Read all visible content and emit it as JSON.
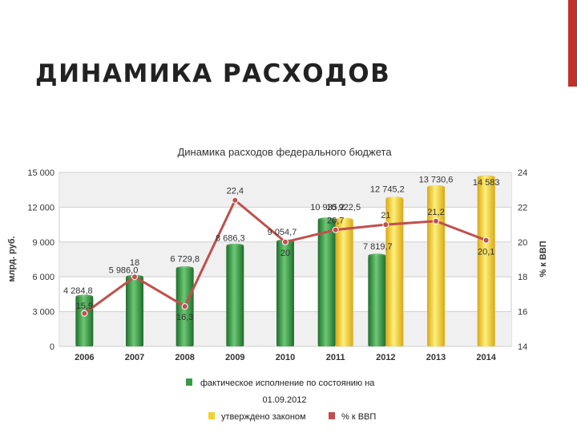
{
  "slide": {
    "title": "ДИНАМИКА РАСХОДОВ",
    "accent_color": "#c0312c"
  },
  "chart_data": {
    "type": "bar+line",
    "title": "Динамика расходов федерального бюджета",
    "ylabel": "млрд. руб.",
    "y2label": "% к ВВП",
    "ylim": [
      0,
      15000
    ],
    "y2lim": [
      14,
      24
    ],
    "yticks": [
      "0",
      "3 000",
      "6 000",
      "9 000",
      "12 000",
      "15 000"
    ],
    "y2ticks": [
      "14",
      "16",
      "18",
      "20",
      "22",
      "24"
    ],
    "grid": true,
    "categories": [
      "2006",
      "2007",
      "2008",
      "2009",
      "2010",
      "2011",
      "2012",
      "2013",
      "2014"
    ],
    "series": [
      {
        "name": "фактическое исполнение по состоянию на 01.09.2012",
        "kind": "bar",
        "color": "#3a9a48",
        "values": [
          4284.8,
          5986,
          6729.8,
          8686.3,
          9054.7,
          10935.2,
          7819.7,
          null,
          null
        ],
        "labels": [
          "4 284,8",
          "5 986,0",
          "6 729,8",
          "8 686,3",
          "9 054,7",
          "10 935,2",
          "7 819,7",
          "",
          ""
        ]
      },
      {
        "name": "утверждено законом",
        "kind": "bar",
        "color": "#f2d22e",
        "values": [
          null,
          null,
          null,
          null,
          null,
          10922.5,
          12745.2,
          13730.6,
          14583
        ],
        "labels": [
          "",
          "",
          "",
          "",
          "",
          "10 922,5",
          "12 745,2",
          "13 730,6",
          "14 583"
        ]
      },
      {
        "name": "% к ВВП",
        "kind": "line",
        "axis": "right",
        "color": "#c0504d",
        "values": [
          15.9,
          18,
          16.3,
          22.4,
          20,
          20.7,
          21,
          21.2,
          20.1
        ],
        "labels": [
          "15,9",
          "18",
          "16,3",
          "22,4",
          "20",
          "20,7",
          "21",
          "21,2",
          "20,1"
        ]
      }
    ],
    "legend": {
      "placement": "bottom",
      "actual_label_line1": "фактическое исполнение по состоянию на",
      "actual_label_line2": "01.09.2012",
      "approved_label": "утверждено законом",
      "gdp_label": "% к ВВП"
    }
  }
}
